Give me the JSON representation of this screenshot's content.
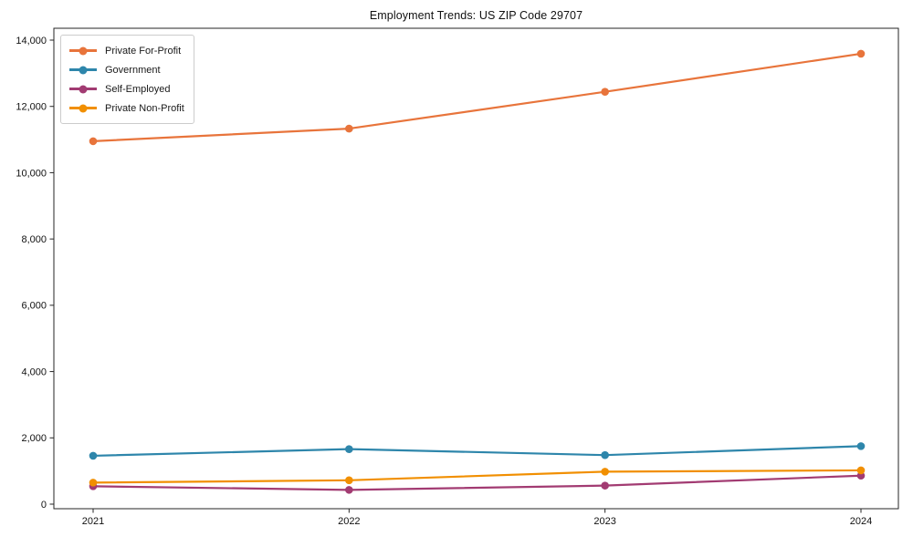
{
  "chart_data": {
    "type": "line",
    "title": "Employment Trends: US ZIP Code 29707",
    "x": [
      2021,
      2022,
      2023,
      2024
    ],
    "x_tick_labels": [
      "2021",
      "2022",
      "2023",
      "2024"
    ],
    "series": [
      {
        "name": "Private For-Profit",
        "color": "#E8743B",
        "values": [
          10950,
          11330,
          12440,
          13590
        ]
      },
      {
        "name": "Government",
        "color": "#2E86AB",
        "values": [
          1460,
          1660,
          1480,
          1750
        ]
      },
      {
        "name": "Self-Employed",
        "color": "#A23B72",
        "values": [
          540,
          430,
          560,
          860
        ]
      },
      {
        "name": "Private Non-Profit",
        "color": "#F18F01",
        "values": [
          650,
          720,
          980,
          1020
        ]
      }
    ],
    "ylim": [
      0,
      14000
    ],
    "ytick_step": 2000,
    "ytick_labels": [
      "0",
      "2,000",
      "4,000",
      "6,000",
      "8,000",
      "10,000",
      "12,000",
      "14,000"
    ],
    "grid": false,
    "legend_position": "upper-left",
    "marker": "circle",
    "axis_color": "#262626"
  }
}
